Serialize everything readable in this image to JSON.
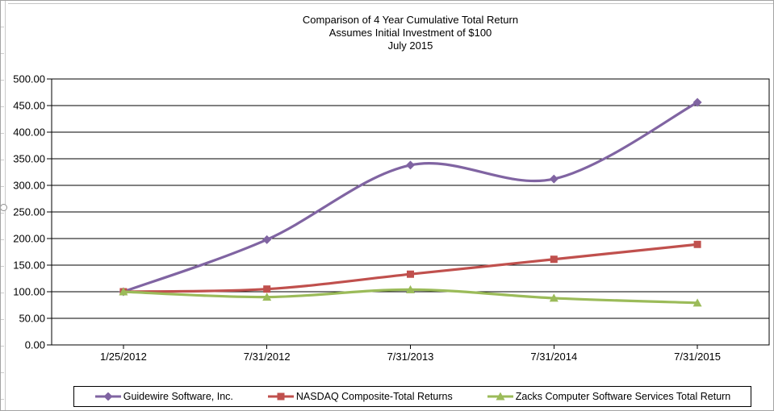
{
  "title": {
    "line1": "Comparison of 4 Year Cumulative Total Return",
    "line2": "Assumes Initial Investment of $100",
    "line3": "July 2015"
  },
  "chart_data": {
    "type": "line",
    "title": "Comparison of 4 Year Cumulative Total Return",
    "subtitle": "Assumes Initial Investment of $100",
    "period_label": "July 2015",
    "categories": [
      "1/25/2012",
      "7/31/2012",
      "7/31/2013",
      "7/31/2014",
      "7/31/2015"
    ],
    "series": [
      {
        "name": "Guidewire Software, Inc.",
        "color": "#8064A2",
        "marker": "diamond",
        "values": [
          100,
          198,
          338,
          312,
          456
        ]
      },
      {
        "name": "NASDAQ Composite-Total Returns",
        "color": "#C0504D",
        "marker": "square",
        "values": [
          100,
          105,
          133,
          161,
          189
        ]
      },
      {
        "name": "Zacks Computer Software Services Total Return",
        "color": "#9BBB59",
        "marker": "triangle",
        "values": [
          100,
          90,
          104,
          88,
          79
        ]
      }
    ],
    "ylim": [
      0,
      500
    ],
    "ytick_step": 50,
    "ytick_labels": [
      "0.00",
      "50.00",
      "100.00",
      "150.00",
      "200.00",
      "250.00",
      "300.00",
      "350.00",
      "400.00",
      "450.00",
      "500.00"
    ],
    "grid": true,
    "smooth_lines": true,
    "legend_position": "bottom",
    "axis_color": "#000000",
    "gridline_color": "#000000"
  }
}
